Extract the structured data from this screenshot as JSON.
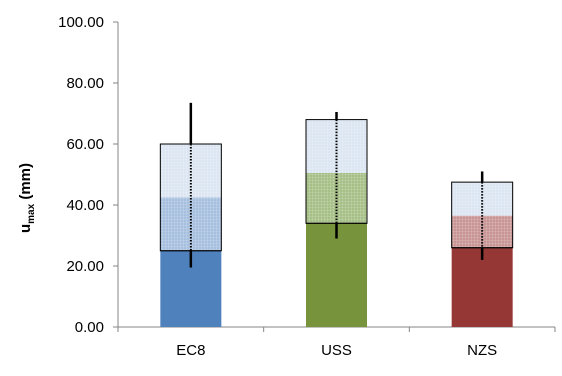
{
  "chart_data": {
    "type": "bar",
    "title": "",
    "xlabel": "",
    "ylabel": {
      "main": "u",
      "sub": "max",
      "suffix": " (mm)"
    },
    "ylim": [
      0,
      100
    ],
    "yticks": [
      "0.00",
      "20.00",
      "40.00",
      "60.00",
      "80.00",
      "100.00"
    ],
    "ytick_values": [
      0,
      20,
      40,
      60,
      80,
      100
    ],
    "grid": false,
    "categories": [
      "EC8",
      "USS",
      "NZS"
    ],
    "series": [
      {
        "solid_value": [
          25.0,
          34.0,
          26.0
        ],
        "mid_value": [
          42.5,
          50.5,
          36.5
        ],
        "top_value": [
          60.0,
          68.0,
          47.5
        ],
        "whisker_low": [
          19.5,
          29.0,
          22.0
        ],
        "whisker_high": [
          73.5,
          70.5,
          51.0
        ],
        "colors": [
          "#4f81bd",
          "#77933c",
          "#953735"
        ],
        "light_colors": [
          "#dce6f2",
          "#dce6f2",
          "#dce6f2"
        ],
        "mid_colors": [
          "#a7bfde",
          "#a6bf86",
          "#c89594"
        ]
      }
    ]
  }
}
